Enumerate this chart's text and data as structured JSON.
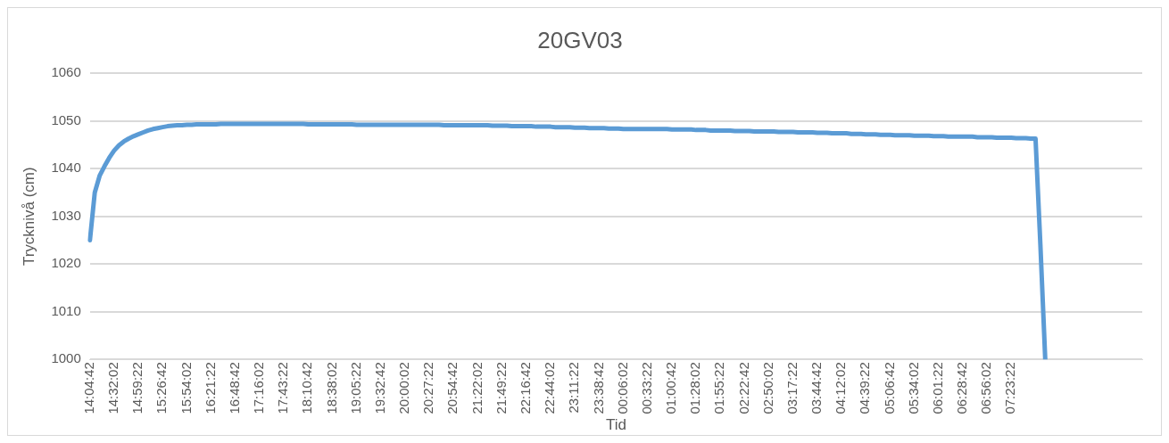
{
  "chart_data": {
    "type": "line",
    "title": "20GV03",
    "xlabel": "Tid",
    "ylabel": "Trycknivå (cm)",
    "categories": [
      "14:04:42",
      null,
      null,
      null,
      null,
      "14:32:02",
      null,
      null,
      null,
      null,
      "14:59:22",
      null,
      null,
      null,
      null,
      "15:26:42",
      null,
      null,
      null,
      null,
      "15:54:02",
      null,
      null,
      null,
      null,
      "16:21:22",
      null,
      null,
      null,
      null,
      "16:48:42",
      null,
      null,
      null,
      null,
      "17:16:02",
      null,
      null,
      null,
      null,
      "17:43:22",
      null,
      null,
      null,
      null,
      "18:10:42",
      null,
      null,
      null,
      null,
      "18:38:02",
      null,
      null,
      null,
      null,
      "19:05:22",
      null,
      null,
      null,
      null,
      "19:32:42",
      null,
      null,
      null,
      null,
      "20:00:02",
      null,
      null,
      null,
      null,
      "20:27:22",
      null,
      null,
      null,
      null,
      "20:54:42",
      null,
      null,
      null,
      null,
      "21:22:02",
      null,
      null,
      null,
      null,
      "21:49:22",
      null,
      null,
      null,
      null,
      "22:16:42",
      null,
      null,
      null,
      null,
      "22:44:02",
      null,
      null,
      null,
      null,
      "23:11:22",
      null,
      null,
      null,
      null,
      "23:38:42",
      null,
      null,
      null,
      null,
      "00:06:02",
      null,
      null,
      null,
      null,
      "00:33:22",
      null,
      null,
      null,
      null,
      "01:00:42",
      null,
      null,
      null,
      null,
      "01:28:02",
      null,
      null,
      null,
      null,
      "01:55:22",
      null,
      null,
      null,
      null,
      "02:22:42",
      null,
      null,
      null,
      null,
      "02:50:02",
      null,
      null,
      null,
      null,
      "03:17:22",
      null,
      null,
      null,
      null,
      "03:44:42",
      null,
      null,
      null,
      null,
      "04:12:02",
      null,
      null,
      null,
      null,
      "04:39:22",
      null,
      null,
      null,
      null,
      "05:06:42",
      null,
      null,
      null,
      null,
      "05:34:02",
      null,
      null,
      null,
      null,
      "06:01:22",
      null,
      null,
      null,
      null,
      "06:28:42",
      null,
      null,
      null,
      null,
      "06:56:02",
      null,
      null,
      null,
      null,
      "07:23:22",
      null,
      null,
      null,
      null,
      null,
      null,
      null,
      null,
      null,
      null,
      null,
      null,
      null,
      null,
      null,
      null,
      null,
      null,
      null,
      null,
      null,
      null,
      null,
      null,
      null,
      null,
      null
    ],
    "series": [
      {
        "color": "#5b9bd5",
        "values": [
          1025,
          1035,
          1038.5,
          1040.5,
          1042.3,
          1043.8,
          1044.9,
          1045.7,
          1046.3,
          1046.8,
          1047.2,
          1047.6,
          1048,
          1048.3,
          1048.5,
          1048.7,
          1048.9,
          1049,
          1049.1,
          1049.1,
          1049.2,
          1049.2,
          1049.3,
          1049.3,
          1049.3,
          1049.3,
          1049.3,
          1049.4,
          1049.4,
          1049.4,
          1049.4,
          1049.4,
          1049.4,
          1049.4,
          1049.4,
          1049.4,
          1049.4,
          1049.4,
          1049.4,
          1049.4,
          1049.4,
          1049.4,
          1049.4,
          1049.4,
          1049.4,
          1049.3,
          1049.3,
          1049.3,
          1049.3,
          1049.3,
          1049.3,
          1049.3,
          1049.3,
          1049.3,
          1049.3,
          1049.2,
          1049.2,
          1049.2,
          1049.2,
          1049.2,
          1049.2,
          1049.2,
          1049.2,
          1049.2,
          1049.2,
          1049.2,
          1049.2,
          1049.2,
          1049.2,
          1049.2,
          1049.2,
          1049.2,
          1049.2,
          1049.1,
          1049.1,
          1049.1,
          1049.1,
          1049.1,
          1049.1,
          1049.1,
          1049.1,
          1049.1,
          1049.1,
          1049,
          1049,
          1049,
          1049,
          1048.9,
          1048.9,
          1048.9,
          1048.9,
          1048.9,
          1048.8,
          1048.8,
          1048.8,
          1048.8,
          1048.7,
          1048.7,
          1048.7,
          1048.7,
          1048.6,
          1048.6,
          1048.6,
          1048.5,
          1048.5,
          1048.5,
          1048.5,
          1048.4,
          1048.4,
          1048.4,
          1048.3,
          1048.3,
          1048.3,
          1048.3,
          1048.3,
          1048.3,
          1048.3,
          1048.3,
          1048.3,
          1048.3,
          1048.2,
          1048.2,
          1048.2,
          1048.2,
          1048.2,
          1048.1,
          1048.1,
          1048.1,
          1048,
          1048,
          1048,
          1048,
          1048,
          1047.9,
          1047.9,
          1047.9,
          1047.9,
          1047.8,
          1047.8,
          1047.8,
          1047.8,
          1047.8,
          1047.7,
          1047.7,
          1047.7,
          1047.7,
          1047.6,
          1047.6,
          1047.6,
          1047.6,
          1047.5,
          1047.5,
          1047.5,
          1047.4,
          1047.4,
          1047.4,
          1047.4,
          1047.3,
          1047.3,
          1047.3,
          1047.2,
          1047.2,
          1047.2,
          1047.1,
          1047.1,
          1047.1,
          1047,
          1047,
          1047,
          1047,
          1046.9,
          1046.9,
          1046.9,
          1046.9,
          1046.8,
          1046.8,
          1046.8,
          1046.7,
          1046.7,
          1046.7,
          1046.7,
          1046.7,
          1046.7,
          1046.6,
          1046.6,
          1046.6,
          1046.6,
          1046.5,
          1046.5,
          1046.5,
          1046.5,
          1046.4,
          1046.4,
          1046.4,
          1046.3,
          1046.3,
          1024,
          1000,
          null,
          null,
          null,
          null,
          null,
          null,
          null,
          null,
          null,
          null,
          null,
          null,
          null,
          null,
          null,
          null,
          null,
          null,
          null,
          null
        ]
      }
    ],
    "ylim": [
      1000,
      1060
    ],
    "yticks": [
      1000,
      1010,
      1020,
      1030,
      1040,
      1050,
      1060
    ],
    "grid": "y",
    "legend": false,
    "marker": "none",
    "line_style": "solid"
  }
}
